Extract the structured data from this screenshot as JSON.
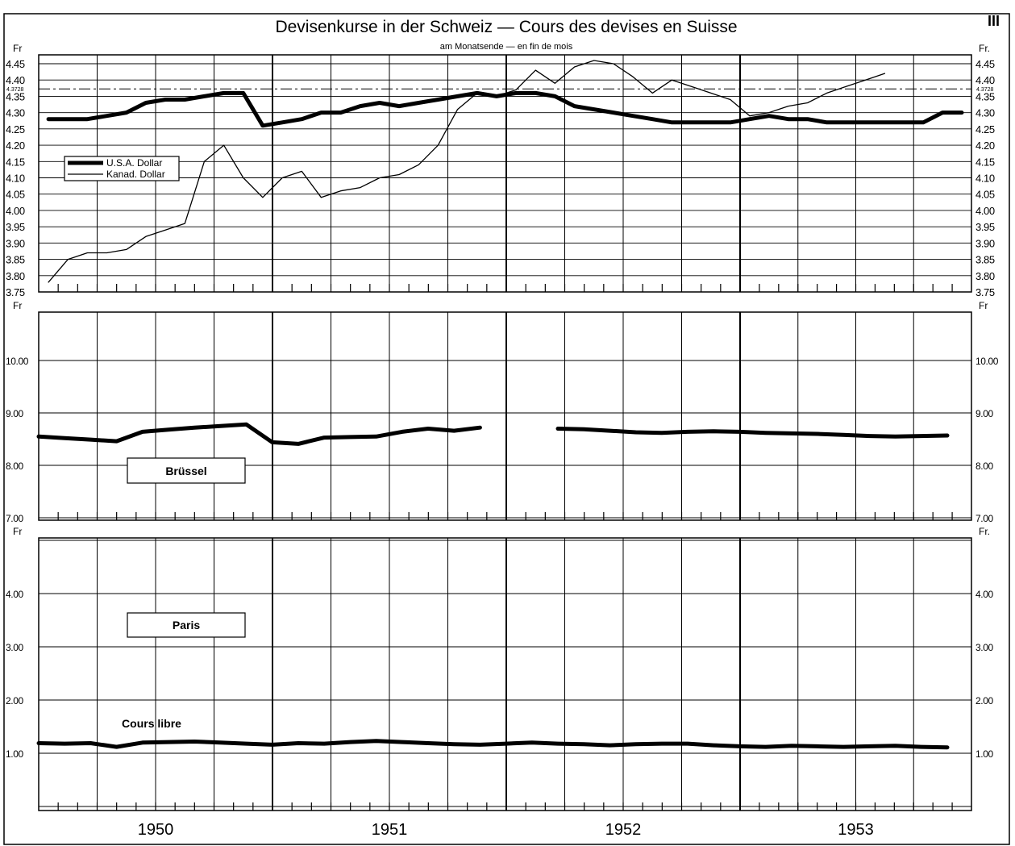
{
  "header": {
    "title": "Devisenkurse in der Schweiz — Cours des devises en Suisse",
    "subtitle": "am Monatsende — en fin de mois",
    "plate_number": "III"
  },
  "chart_data": [
    {
      "type": "line",
      "unit_left": "Fr",
      "unit_right": "Fr.",
      "ylim": [
        3.75,
        4.45
      ],
      "yticks": [
        "4.45",
        "4.40",
        "4.35",
        "4.30",
        "4.25",
        "4.20",
        "4.15",
        "4.10",
        "4.05",
        "4.00",
        "3.95",
        "3.90",
        "3.85",
        "3.80",
        "3.75"
      ],
      "reference_line": {
        "label": "4.3728",
        "value": 4.3728
      },
      "legend": {
        "placement": "left",
        "entries": [
          "U.S.A. Dollar",
          "Kanad. Dollar"
        ]
      },
      "x": [
        "1950-01",
        "1950-02",
        "1950-03",
        "1950-04",
        "1950-05",
        "1950-06",
        "1950-07",
        "1950-08",
        "1950-09",
        "1950-10",
        "1950-11",
        "1950-12",
        "1951-01",
        "1951-02",
        "1951-03",
        "1951-04",
        "1951-05",
        "1951-06",
        "1951-07",
        "1951-08",
        "1951-09",
        "1951-10",
        "1951-11",
        "1951-12",
        "1952-01",
        "1952-02",
        "1952-03",
        "1952-04",
        "1952-05",
        "1952-06",
        "1952-07",
        "1952-08",
        "1952-09",
        "1952-10",
        "1952-11",
        "1952-12",
        "1953-01",
        "1953-02",
        "1953-03",
        "1953-04",
        "1953-05",
        "1953-06",
        "1953-07",
        "1953-08",
        "1953-09",
        "1953-10",
        "1953-11",
        "1953-12"
      ],
      "series": [
        {
          "name": "U.S.A. Dollar",
          "values": [
            4.28,
            4.28,
            4.28,
            4.29,
            4.3,
            4.33,
            4.34,
            4.34,
            4.35,
            4.36,
            4.36,
            4.26,
            4.27,
            4.28,
            4.3,
            4.3,
            4.32,
            4.33,
            4.32,
            4.33,
            4.34,
            4.35,
            4.36,
            4.35,
            4.36,
            4.36,
            4.35,
            4.32,
            4.31,
            4.3,
            4.29,
            4.28,
            4.27,
            4.27,
            4.27,
            4.27,
            4.28,
            4.29,
            4.28,
            4.28,
            4.27,
            4.27,
            4.27,
            4.27,
            4.27,
            4.27,
            4.3,
            4.3
          ]
        },
        {
          "name": "Kanad. Dollar",
          "values": [
            3.78,
            3.85,
            3.87,
            3.87,
            3.88,
            3.92,
            3.94,
            3.96,
            4.15,
            4.2,
            4.1,
            4.04,
            4.1,
            4.12,
            4.04,
            4.06,
            4.07,
            4.1,
            4.11,
            4.14,
            4.2,
            4.31,
            4.36,
            4.35,
            4.37,
            4.43,
            4.39,
            4.44,
            4.46,
            4.45,
            4.41,
            4.36,
            4.4,
            4.38,
            4.36,
            4.34,
            4.29,
            4.3,
            4.32,
            4.33,
            4.36,
            4.38,
            4.4,
            4.42,
            null,
            null,
            null,
            null
          ]
        }
      ]
    },
    {
      "type": "line",
      "unit_left": "Fr",
      "unit_right": "Fr",
      "ylim": [
        7.0,
        10.0
      ],
      "yticks": [
        "10.00",
        "9.00",
        "8.00",
        "7.00"
      ],
      "label": "Brüssel",
      "series": [
        {
          "name": "Brüssel",
          "values": [
            8.55,
            8.52,
            8.49,
            8.46,
            8.64,
            8.68,
            8.72,
            8.75,
            8.78,
            8.44,
            8.41,
            8.53,
            8.54,
            8.55,
            8.64,
            8.7,
            8.66,
            8.72,
            null,
            null,
            8.7,
            8.69,
            8.66,
            8.63,
            8.62,
            8.64,
            8.65,
            8.64,
            8.62,
            8.61,
            8.6,
            8.58,
            8.56,
            8.55,
            8.56,
            8.57
          ]
        }
      ]
    },
    {
      "type": "line",
      "unit_left": "Fr",
      "unit_right": "Fr.",
      "ylim": [
        0,
        5.0
      ],
      "yticks": [
        "4.00",
        "3.00",
        "2.00",
        "1.00"
      ],
      "label": "Paris",
      "annotation": "Cours libre",
      "x_labels": [
        "1950",
        "1951",
        "1952",
        "1953"
      ],
      "series": [
        {
          "name": "Cours libre",
          "values": [
            1.19,
            1.18,
            1.19,
            1.12,
            1.2,
            1.21,
            1.22,
            1.2,
            1.18,
            1.16,
            1.19,
            1.18,
            1.21,
            1.23,
            1.21,
            1.19,
            1.17,
            1.16,
            1.18,
            1.2,
            1.18,
            1.17,
            1.15,
            1.17,
            1.18,
            1.18,
            1.15,
            1.13,
            1.12,
            1.14,
            1.13,
            1.12,
            1.13,
            1.14,
            1.12,
            1.11
          ]
        }
      ]
    }
  ]
}
